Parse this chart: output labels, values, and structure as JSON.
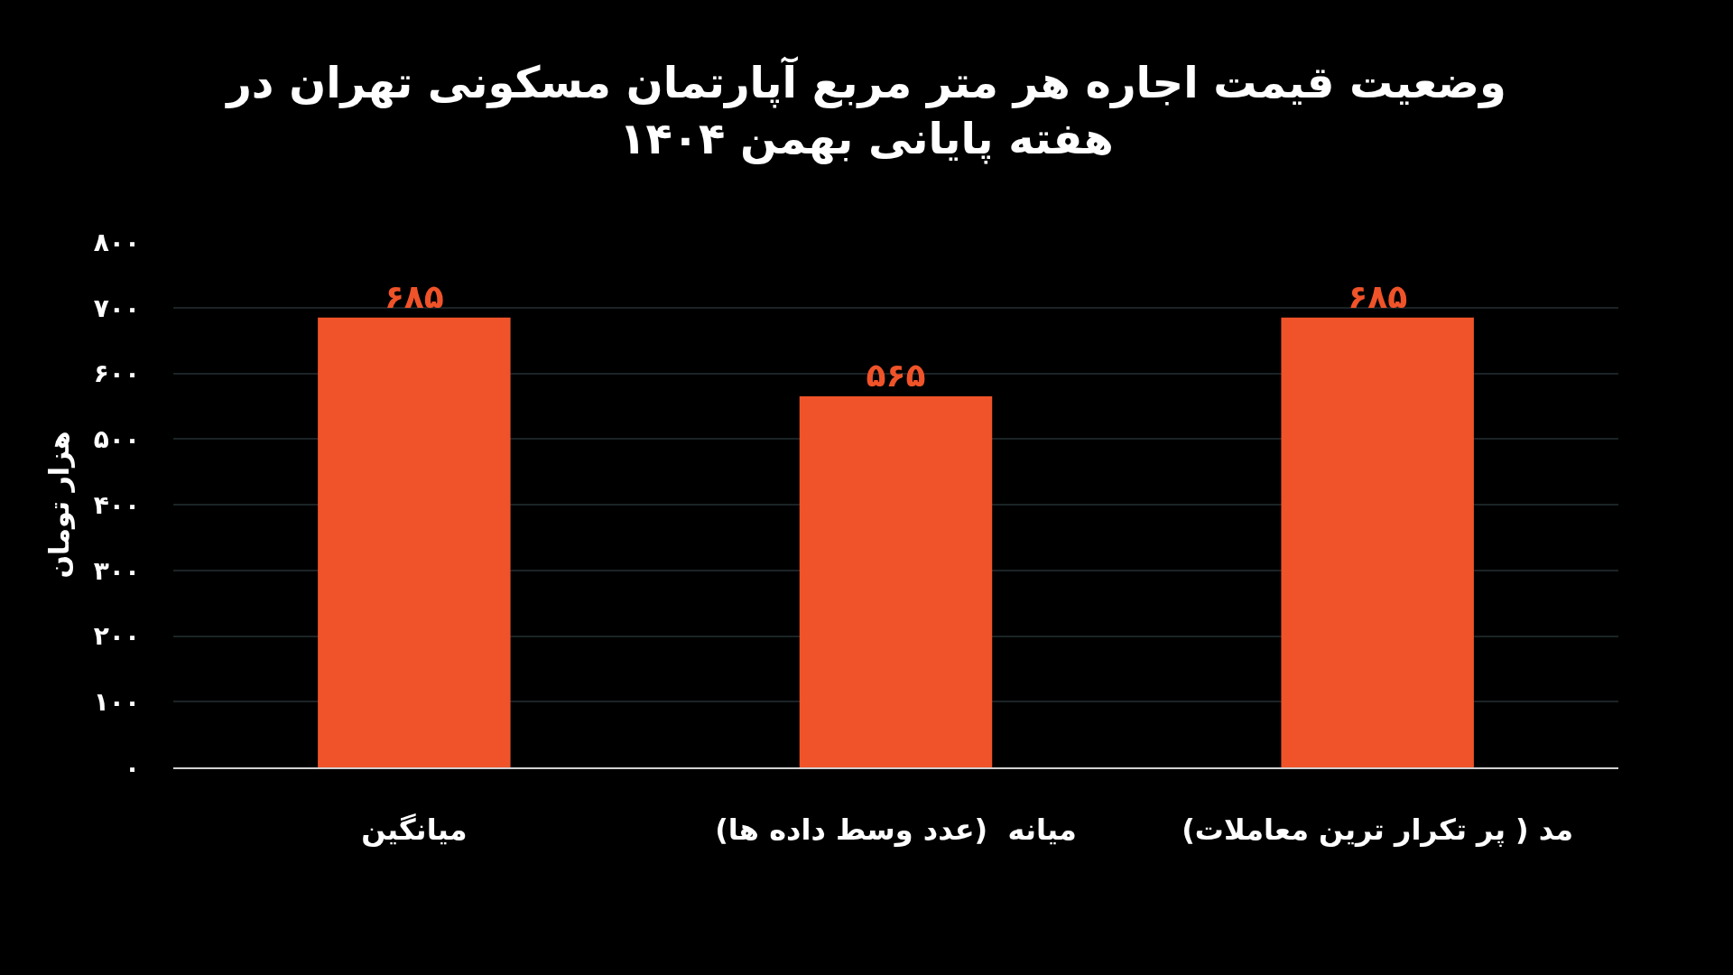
{
  "chart_data": {
    "type": "bar",
    "title": "وضعیت قیمت اجاره هر متر مربع آپارتمان مسکونی تهران در\nهفته پایانی بهمن ۱۴۰۴",
    "ylabel": "هزار تومان",
    "categories": [
      "میانگین",
      "میانه  (عدد وسط داده ها)",
      "مد ( پر تکرار ترین معاملات)"
    ],
    "values": [
      685,
      565,
      685
    ],
    "value_labels": [
      "۶۸۵",
      "۵۶۵",
      "۶۸۵"
    ],
    "color": "#f05329",
    "ylim": [
      0,
      800
    ],
    "yticks": [
      {
        "value": 0,
        "label": "۰"
      },
      {
        "value": 100,
        "label": "۱۰۰"
      },
      {
        "value": 200,
        "label": "۲۰۰"
      },
      {
        "value": 300,
        "label": "۳۰۰"
      },
      {
        "value": 400,
        "label": "۴۰۰"
      },
      {
        "value": 500,
        "label": "۵۰۰"
      },
      {
        "value": 600,
        "label": "۶۰۰"
      },
      {
        "value": 700,
        "label": "۷۰۰"
      },
      {
        "value": 800,
        "label": "۸۰۰"
      }
    ],
    "grid": "y"
  }
}
